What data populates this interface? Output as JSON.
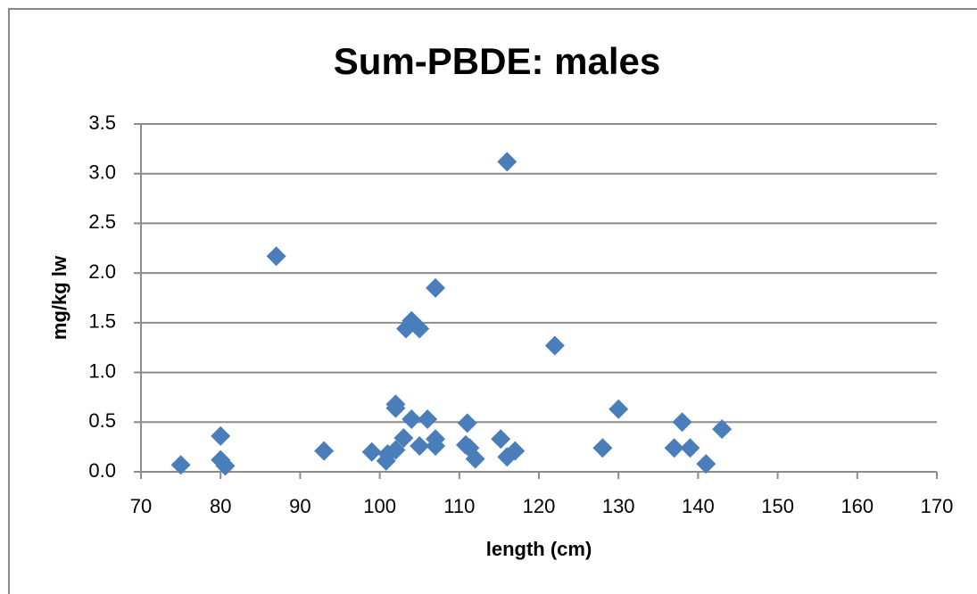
{
  "chart_data": {
    "type": "scatter",
    "title": "Sum-PBDE: males",
    "x_label": "length (cm)",
    "y_label": "mg/kg lw",
    "color": "#4a7ebb",
    "grid": true,
    "xlim": [
      70,
      170
    ],
    "xticks": [
      70,
      80,
      90,
      100,
      110,
      120,
      130,
      140,
      150,
      160,
      170
    ],
    "ylim": [
      0,
      3.5
    ],
    "yticks": [
      {
        "value": 0,
        "label": "0.0"
      },
      0.5,
      {
        "value": 1,
        "label": "1.0"
      },
      1.5,
      {
        "value": 2,
        "label": "2.0"
      },
      2.5,
      {
        "value": 3,
        "label": "3.0"
      },
      3.5
    ],
    "x": [
      75,
      80,
      80,
      80.6,
      87,
      93,
      99,
      100.8,
      101,
      102,
      102,
      102,
      103,
      103.3,
      104,
      104,
      105,
      105,
      106,
      107,
      107,
      107,
      111,
      110.8,
      111.3,
      112,
      115.2,
      116,
      116,
      117,
      122,
      128,
      130,
      137,
      138,
      139,
      141,
      143
    ],
    "y": [
      0.07,
      0.36,
      0.12,
      0.06,
      2.17,
      0.21,
      0.2,
      0.11,
      0.18,
      0.22,
      0.68,
      0.64,
      0.34,
      1.44,
      1.52,
      0.53,
      0.26,
      1.44,
      0.53,
      0.33,
      0.26,
      1.85,
      0.49,
      0.27,
      0.24,
      0.13,
      0.33,
      3.12,
      0.15,
      0.21,
      1.27,
      0.24,
      0.63,
      0.24,
      0.5,
      0.24,
      0.08,
      0.43
    ]
  }
}
